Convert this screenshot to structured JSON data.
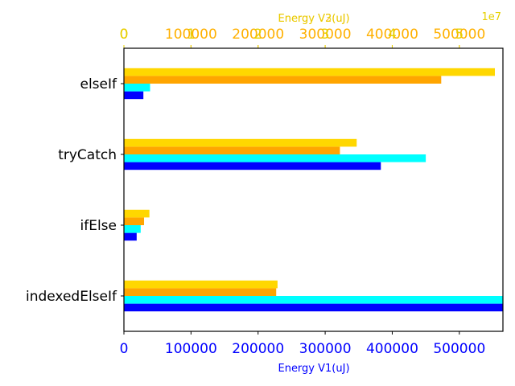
{
  "chart_data": {
    "type": "bar",
    "orientation": "horizontal",
    "categories": [
      "elseIf",
      "tryCatch",
      "ifElse",
      "indexedElseIf"
    ],
    "grid": false,
    "bottom_axis": {
      "label": "Energy V1(uJ)",
      "color": "#0000ff",
      "range": [
        0,
        565000
      ],
      "ticks": [
        0,
        100000,
        200000,
        300000,
        400000,
        500000
      ],
      "tick_labels": [
        "0",
        "100000",
        "200000",
        "300000",
        "400000",
        "500000"
      ]
    },
    "top_axis_a": {
      "label": "Energy V2(uJ)",
      "color": "#ffb000",
      "range": [
        0,
        565000
      ],
      "ticks": [
        0,
        100000,
        200000,
        300000,
        400000,
        500000
      ],
      "tick_labels": [
        "0",
        "100000",
        "200000",
        "300000",
        "400000",
        "500000"
      ]
    },
    "top_axis_b": {
      "label": "Energy V3(uJ)",
      "color": "#e6d000",
      "multiplier": "1e7",
      "range": [
        0,
        5.65
      ],
      "ticks": [
        0,
        1,
        2,
        3,
        4,
        5
      ],
      "tick_labels": [
        "0",
        "1",
        "2",
        "3",
        "4",
        "5"
      ]
    },
    "series": [
      {
        "color": "#0000ff",
        "values": [
          29000,
          383000,
          19000,
          565000
        ]
      },
      {
        "color": "#00ffff",
        "values": [
          39000,
          450000,
          25000,
          565000
        ]
      },
      {
        "color": "#ffa500",
        "values": [
          473000,
          322000,
          30000,
          227000
        ]
      },
      {
        "color": "#ffd700",
        "values": [
          553000,
          347000,
          38000,
          229000
        ]
      }
    ]
  }
}
